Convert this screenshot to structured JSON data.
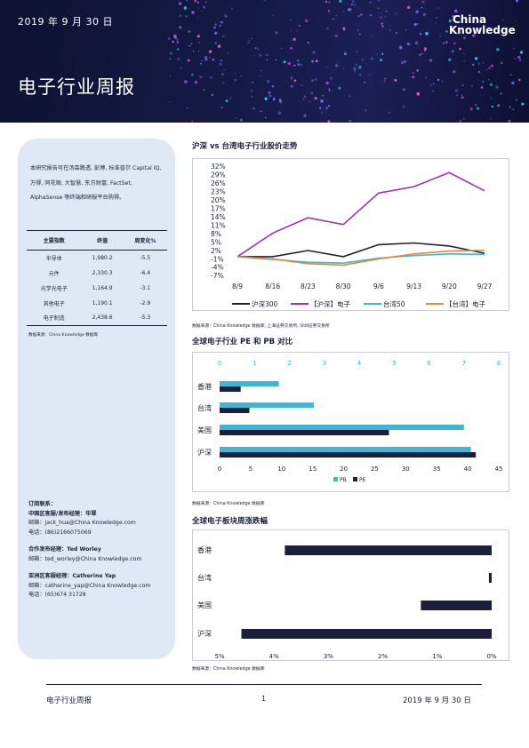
{
  "header": {
    "date": "2019 年 9 月 30 日",
    "title": "电子行业周报",
    "logo_line1": "China",
    "logo_line2": "Knowledge"
  },
  "sidebar": {
    "intro": "本研究报告可在汤森路透, 彭博, 标准普尔 Capital IQ, 万得, 同花顺, 大智慧, 东方财富, FactSet, AlphaSense 等终端和研报平台购得。",
    "table": {
      "headers": [
        "主要指数",
        "终值",
        "周变化%"
      ],
      "rows": [
        [
          "半导体",
          "1,980.2",
          "-5.5"
        ],
        [
          "元件",
          "2,330.3",
          "-6.4"
        ],
        [
          "光学光电子",
          "1,164.9",
          "-3.1"
        ],
        [
          "其他电子",
          "1,190.1",
          "-2.9"
        ],
        [
          "电子制造",
          "2,438.6",
          "-5.3"
        ]
      ]
    },
    "source": "数据来源：China Knowledge 数据库",
    "contacts": {
      "heading": "订阅联系：",
      "china_title": "中国区客服/发布经理：华翠",
      "china_email": "邮箱：jack_hua@China Knowledge.com",
      "china_phone": "电话：(86)2166075069",
      "partner_title": "合作发布经理：Ted Worley",
      "partner_email": "邮箱：ted_worley@China Knowledge.com",
      "asia_title": "亚洲区客服经理：Catherine Yap",
      "asia_email": "邮箱：catherine_yap@China Knowledge.com",
      "asia_phone": "电话：(65)674 31728"
    }
  },
  "panels": {
    "line_title": "沪深 vs 台湾电子行业股价走势",
    "line_source": "数据来源：China Knowledge 数据库, 上海证券交易所, 深圳证券交易所",
    "pe_title": "全球电子行业 PE 和 PB 对比",
    "pe_source": "数据来源：China Knowledge 数据库",
    "weekly_title": "全球电子板块周涨跌幅",
    "weekly_source": "数据来源：China Knowledge 数据库"
  },
  "footer": {
    "left": "电子行业周报",
    "page": "1",
    "right": "2019 年 9 月 30 日"
  },
  "colors": {
    "navy": "#1b1f3a",
    "purple": "#9e33b5",
    "cyan": "#3fb6d3",
    "orange": "#e08a3c",
    "sidebar_bg": "#dfe9f6"
  },
  "chart_data": [
    {
      "type": "line",
      "title": "沪深 vs 台湾电子行业股价走势",
      "x": [
        "8/9",
        "8/16",
        "8/23",
        "8/30",
        "9/6",
        "9/13",
        "9/20",
        "9/27"
      ],
      "y_ticks": [
        "32%",
        "29%",
        "26%",
        "23%",
        "20%",
        "17%",
        "14%",
        "11%",
        "8%",
        "5%",
        "2%",
        "-1%",
        "-4%",
        "-7%"
      ],
      "ylim": [
        -7,
        32
      ],
      "series": [
        {
          "name": "沪深300",
          "color": "#1b1f3a",
          "values": [
            0,
            0,
            2.2,
            0,
            4.3,
            4.9,
            3.8,
            1.2
          ]
        },
        {
          "name": "【沪深】电子",
          "color": "#9e33b5",
          "values": [
            0,
            8.4,
            13.9,
            11.5,
            22.7,
            25.0,
            30.0,
            23.5
          ]
        },
        {
          "name": "台湾50",
          "color": "#3fb6d3",
          "values": [
            0,
            -1.0,
            -2.0,
            -2.3,
            -0.5,
            0.4,
            1.0,
            0.8
          ]
        },
        {
          "name": "【台湾】电子",
          "color": "#e08a3c",
          "values": [
            0,
            -0.8,
            -2.5,
            -3.0,
            -0.8,
            1.0,
            2.0,
            2.3
          ]
        }
      ],
      "legend": "bottom"
    },
    {
      "type": "bar",
      "title": "全球电子行业 PE 和 PB 对比",
      "categories": [
        "香港",
        "台湾",
        "美国",
        "沪深"
      ],
      "pb_axis_ticks": [
        "0",
        "1",
        "2",
        "3",
        "4",
        "5",
        "6",
        "7",
        "8"
      ],
      "pe_axis_ticks": [
        "0",
        "5",
        "10",
        "15",
        "20",
        "25",
        "30",
        "35",
        "40",
        "45"
      ],
      "pb_lim": [
        0,
        8
      ],
      "pe_lim": [
        0,
        45
      ],
      "series": [
        {
          "name": "PB",
          "color": "#3fb6d3",
          "axis": "top",
          "values": [
            1.7,
            2.7,
            7.0,
            7.2
          ]
        },
        {
          "name": "PE",
          "color": "#1b1f3a",
          "axis": "bottom",
          "values": [
            3.4,
            4.8,
            27.3,
            41.3
          ]
        }
      ],
      "legend": "bottom"
    },
    {
      "type": "bar",
      "title": "全球电子板块周涨跌幅",
      "categories": [
        "香港",
        "台湾",
        "美国",
        "沪深"
      ],
      "x_ticks": [
        "5%",
        "4%",
        "3%",
        "2%",
        "1%",
        "0%"
      ],
      "x_tick_values": [
        -5,
        -4,
        -3,
        -2,
        -1,
        0
      ],
      "xlim": [
        -5.3,
        0
      ],
      "series": [
        {
          "name": "周涨跌幅",
          "color": "#1b1f3a",
          "values": [
            -3.8,
            -0.05,
            -1.3,
            -4.6
          ]
        }
      ]
    }
  ]
}
